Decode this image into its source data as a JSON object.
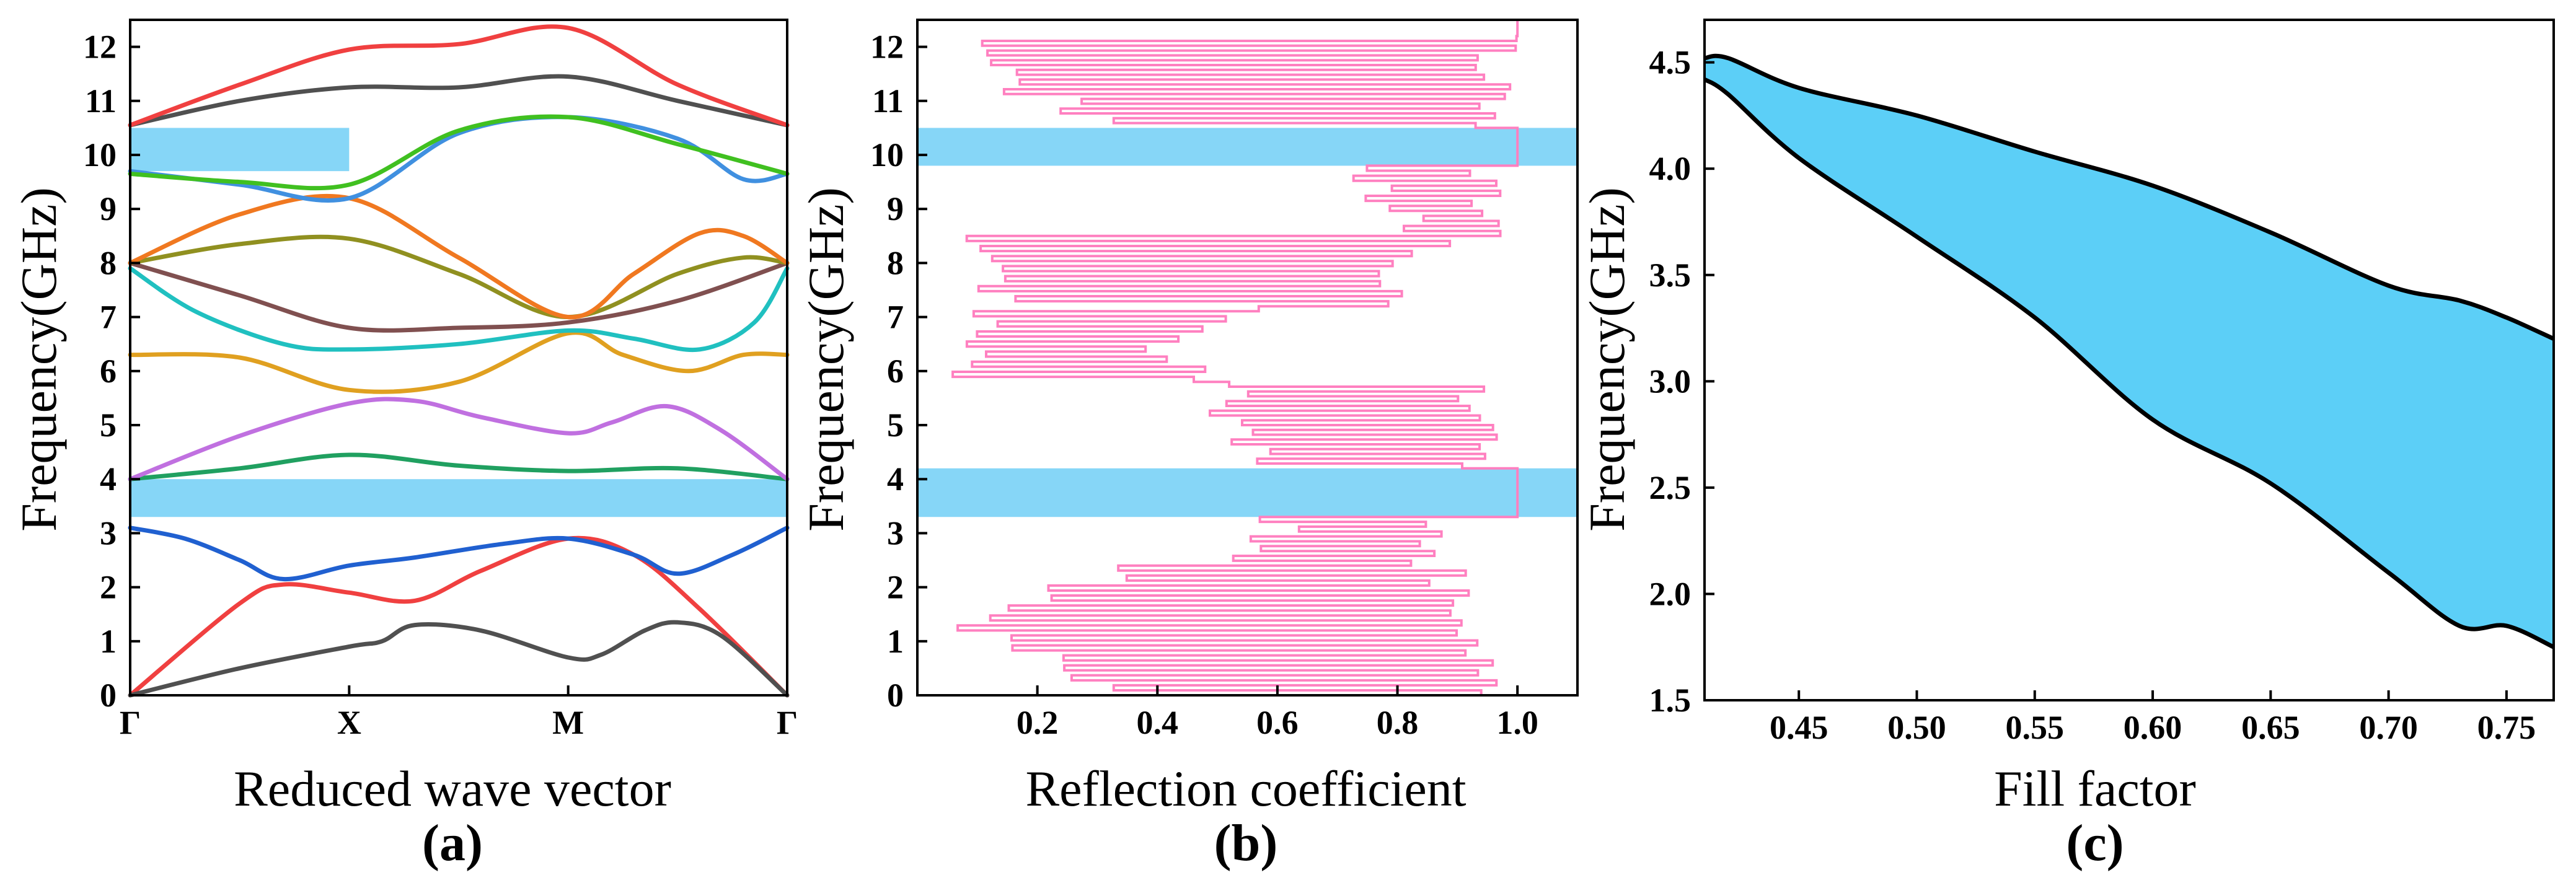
{
  "chart_data": [
    {
      "type": "line",
      "panel_label": "(a)",
      "xlabel": "Reduced wave vector",
      "ylabel": "Frequency(GHz)",
      "ylim": [
        0,
        12.5
      ],
      "yticks": [
        0,
        1,
        2,
        3,
        4,
        5,
        6,
        7,
        8,
        9,
        10,
        11,
        12
      ],
      "x_path_ticks": [
        {
          "label": "Γ",
          "k": 0
        },
        {
          "label": "X",
          "k": 1
        },
        {
          "label": "M",
          "k": 2
        },
        {
          "label": "Γ",
          "k": 3
        }
      ],
      "band_gaps": [
        {
          "k_range": [
            0,
            3
          ],
          "f_range": [
            3.3,
            4.0
          ]
        },
        {
          "k_range": [
            0,
            1
          ],
          "f_range": [
            9.7,
            10.5
          ]
        }
      ],
      "series": [
        {
          "color": "#f04040",
          "k": [
            0,
            0.5,
            0.7,
            1.0,
            1.3,
            1.6,
            2.0,
            2.3,
            2.6,
            3.0
          ],
          "f": [
            0,
            1.7,
            2.05,
            1.9,
            1.75,
            2.3,
            2.9,
            2.6,
            1.6,
            0
          ]
        },
        {
          "color": "#505050",
          "k": [
            0,
            0.5,
            1.0,
            1.15,
            1.3,
            1.6,
            2.0,
            2.15,
            2.35,
            2.5,
            2.7,
            3.0
          ],
          "f": [
            0,
            0.5,
            0.9,
            1.0,
            1.3,
            1.2,
            0.7,
            0.75,
            1.2,
            1.35,
            1.1,
            0
          ]
        },
        {
          "color": "#2060d0",
          "k": [
            0,
            0.25,
            0.5,
            0.7,
            1.0,
            1.3,
            1.7,
            2.0,
            2.3,
            2.5,
            2.75,
            3.0
          ],
          "f": [
            3.1,
            2.9,
            2.5,
            2.15,
            2.4,
            2.55,
            2.8,
            2.9,
            2.6,
            2.25,
            2.6,
            3.1
          ]
        },
        {
          "color": "#20a060",
          "k": [
            0,
            0.5,
            1.0,
            1.5,
            2.0,
            2.5,
            3.0
          ],
          "f": [
            4.0,
            4.2,
            4.45,
            4.25,
            4.15,
            4.2,
            4.0
          ]
        },
        {
          "color": "#c070e0",
          "k": [
            0,
            0.5,
            1.0,
            1.3,
            1.6,
            2.0,
            2.2,
            2.45,
            2.7,
            3.0
          ],
          "f": [
            4.0,
            4.8,
            5.4,
            5.45,
            5.15,
            4.85,
            5.05,
            5.35,
            4.9,
            4.0
          ]
        },
        {
          "color": "#e0a020",
          "k": [
            0,
            0.5,
            1.0,
            1.5,
            2.0,
            2.25,
            2.55,
            2.8,
            3.0
          ],
          "f": [
            6.3,
            6.25,
            5.65,
            5.8,
            6.7,
            6.3,
            6.0,
            6.3,
            6.3
          ]
        },
        {
          "color": "#20c0c0",
          "k": [
            0,
            0.3,
            0.7,
            1.0,
            1.5,
            2.0,
            2.3,
            2.6,
            2.85,
            3.0
          ],
          "f": [
            7.9,
            7.1,
            6.5,
            6.4,
            6.5,
            6.75,
            6.6,
            6.4,
            6.9,
            7.9
          ]
        },
        {
          "color": "#805050",
          "k": [
            0,
            0.5,
            1.0,
            1.5,
            2.0,
            2.5,
            3.0
          ],
          "f": [
            8.0,
            7.4,
            6.8,
            6.8,
            6.9,
            7.3,
            8.0
          ]
        },
        {
          "color": "#909020",
          "k": [
            0,
            0.5,
            1.0,
            1.5,
            2.0,
            2.5,
            2.8,
            3.0
          ],
          "f": [
            8.0,
            8.35,
            8.45,
            7.8,
            7.0,
            7.8,
            8.1,
            8.0
          ]
        },
        {
          "color": "#f07820",
          "k": [
            0,
            0.5,
            1.0,
            1.5,
            2.0,
            2.3,
            2.6,
            2.8,
            3.0
          ],
          "f": [
            8.0,
            8.9,
            9.2,
            8.1,
            7.0,
            7.8,
            8.55,
            8.5,
            8.0
          ]
        },
        {
          "color": "#4090e0",
          "k": [
            0,
            0.5,
            1.0,
            1.5,
            2.0,
            2.5,
            2.8,
            3.0
          ],
          "f": [
            9.7,
            9.45,
            9.2,
            10.4,
            10.7,
            10.3,
            9.55,
            9.65
          ]
        },
        {
          "color": "#40c020",
          "k": [
            0,
            0.5,
            1.0,
            1.5,
            2.0,
            2.5,
            3.0
          ],
          "f": [
            9.65,
            9.5,
            9.45,
            10.45,
            10.7,
            10.2,
            9.65
          ]
        },
        {
          "color": "#505050",
          "k": [
            0,
            0.5,
            1.0,
            1.5,
            2.0,
            2.5,
            3.0
          ],
          "f": [
            10.55,
            11.0,
            11.25,
            11.25,
            11.45,
            11.0,
            10.55
          ]
        },
        {
          "color": "#f04040",
          "k": [
            0,
            0.5,
            1.0,
            1.5,
            2.0,
            2.5,
            3.0
          ],
          "f": [
            10.55,
            11.3,
            11.95,
            12.05,
            12.35,
            11.3,
            10.55
          ]
        }
      ]
    },
    {
      "type": "line",
      "panel_label": "(b)",
      "xlabel": "Reflection coefficient",
      "ylabel": "Frequency(GHz)",
      "xlim": [
        0,
        1.1
      ],
      "ylim": [
        0,
        12.5
      ],
      "xticks": [
        0.2,
        0.4,
        0.6,
        0.8,
        1.0
      ],
      "xtick_labels": [
        "0.2",
        "0.4",
        "0.6",
        "0.8",
        "1.0"
      ],
      "yticks": [
        0,
        1,
        2,
        3,
        4,
        5,
        6,
        7,
        8,
        9,
        10,
        11,
        12
      ],
      "band_gaps": [
        {
          "f_range": [
            3.3,
            4.2
          ]
        },
        {
          "f_range": [
            9.8,
            10.5
          ]
        }
      ],
      "series": [
        {
          "color": "#ff80c0",
          "segments": [
            {
              "f_range": [
                0,
                2.4
              ],
              "r_min": [
                0.3,
                0.05,
                0.3
              ],
              "r_max": [
                0.98,
                0.95,
                0.92
              ]
            },
            {
              "f_range": [
                2.4,
                3.3
              ],
              "r_min": [
                0.5,
                0.55
              ],
              "r_max": [
                0.9,
                0.88
              ]
            },
            {
              "f_range": [
                3.3,
                4.2
              ],
              "r_min": [
                1.0,
                1.0
              ],
              "r_max": [
                1.0,
                1.0
              ]
            },
            {
              "f_range": [
                4.2,
                5.8
              ],
              "r_min": [
                0.55,
                0.45,
                0.5
              ],
              "r_max": [
                0.95,
                0.98,
                0.95
              ]
            },
            {
              "f_range": [
                5.8,
                7.2
              ],
              "r_min": [
                0.05,
                0.05,
                0.05
              ],
              "r_max": [
                0.5,
                0.45,
                0.6
              ]
            },
            {
              "f_range": [
                7.2,
                8.5
              ],
              "r_min": [
                0.1,
                0.05,
                0.05
              ],
              "r_max": [
                0.8,
                0.85,
                0.9
              ]
            },
            {
              "f_range": [
                8.5,
                9.8
              ],
              "r_min": [
                0.8,
                0.7
              ],
              "r_max": [
                1.0,
                1.0
              ]
            },
            {
              "f_range": [
                9.8,
                10.5
              ],
              "r_min": [
                1.0,
                1.0
              ],
              "r_max": [
                1.0,
                1.0
              ]
            },
            {
              "f_range": [
                10.5,
                12.2
              ],
              "r_min": [
                0.3,
                0.1,
                0.1
              ],
              "r_max": [
                1.0,
                1.0,
                1.0
              ]
            },
            {
              "f_range": [
                12.2,
                12.5
              ],
              "r_min": [
                1.0,
                1.0
              ],
              "r_max": [
                1.0,
                1.0
              ]
            }
          ]
        }
      ]
    },
    {
      "type": "area",
      "panel_label": "(c)",
      "xlabel": "Fill factor",
      "ylabel": "Frequency(GHz)",
      "xlim": [
        0.41,
        0.77
      ],
      "ylim": [
        1.5,
        4.7
      ],
      "xticks": [
        0.45,
        0.5,
        0.55,
        0.6,
        0.65,
        0.7,
        0.75
      ],
      "xtick_labels": [
        "0.45",
        "0.50",
        "0.55",
        "0.60",
        "0.65",
        "0.70",
        "0.75"
      ],
      "yticks": [
        1.5,
        2.0,
        2.5,
        3.0,
        3.5,
        4.0,
        4.5
      ],
      "ytick_labels": [
        "1.5",
        "2.0",
        "2.5",
        "3.0",
        "3.5",
        "4.0",
        "4.5"
      ],
      "fill_color": "#5ccff7",
      "x": [
        0.41,
        0.42,
        0.45,
        0.5,
        0.55,
        0.6,
        0.65,
        0.7,
        0.73,
        0.75,
        0.77
      ],
      "upper": [
        4.52,
        4.52,
        4.38,
        4.25,
        4.08,
        3.92,
        3.7,
        3.45,
        3.38,
        3.3,
        3.2
      ],
      "lower": [
        4.42,
        4.35,
        4.05,
        3.68,
        3.3,
        2.82,
        2.52,
        2.1,
        1.85,
        1.85,
        1.75
      ]
    }
  ]
}
